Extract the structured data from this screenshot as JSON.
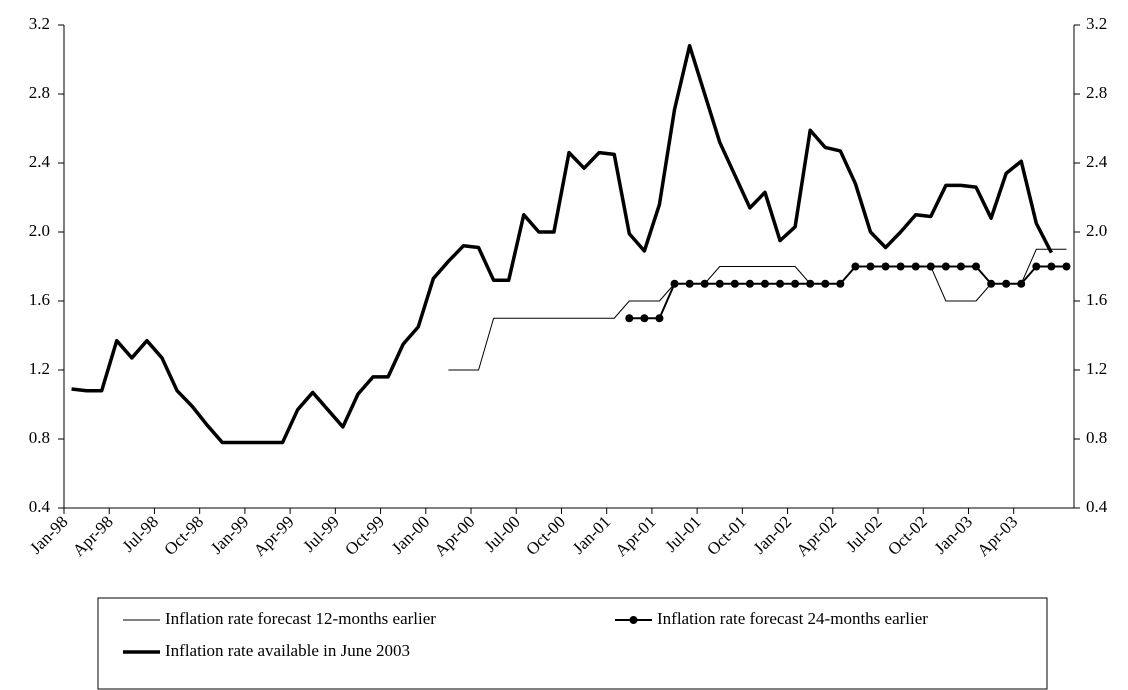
{
  "chart_data": {
    "type": "line",
    "categories": [
      "Jan-98",
      null,
      null,
      "Apr-98",
      null,
      null,
      "Jul-98",
      null,
      null,
      "Oct-98",
      null,
      null,
      "Jan-99",
      null,
      null,
      "Apr-99",
      null,
      null,
      "Jul-99",
      null,
      null,
      "Oct-99",
      null,
      null,
      "Jan-00",
      null,
      null,
      "Apr-00",
      null,
      null,
      "Jul-00",
      null,
      null,
      "Oct-00",
      null,
      null,
      "Jan-01",
      null,
      null,
      "Apr-01",
      null,
      null,
      "Jul-01",
      null,
      null,
      "Oct-01",
      null,
      null,
      "Jan-02",
      null,
      null,
      "Apr-02",
      null,
      null,
      "Jul-02",
      null,
      null,
      "Oct-02",
      null,
      null,
      "Jan-03",
      null,
      null,
      "Apr-03",
      null,
      null,
      null
    ],
    "series": [
      {
        "name": "Inflation rate forecast 12-months earlier",
        "color": "#000000",
        "width": 1,
        "values": [
          null,
          null,
          null,
          null,
          null,
          null,
          null,
          null,
          null,
          null,
          null,
          null,
          null,
          null,
          null,
          null,
          null,
          null,
          null,
          null,
          null,
          null,
          null,
          null,
          null,
          1.2,
          1.2,
          1.2,
          1.5,
          1.5,
          1.5,
          1.5,
          1.5,
          1.5,
          1.5,
          1.5,
          1.5,
          1.6,
          1.6,
          1.6,
          1.7,
          1.7,
          1.7,
          1.8,
          1.8,
          1.8,
          1.8,
          1.8,
          1.8,
          1.7,
          1.7,
          1.7,
          1.8,
          1.8,
          1.8,
          1.8,
          1.8,
          1.8,
          1.6,
          1.6,
          1.6,
          1.7,
          1.7,
          1.7,
          1.9,
          1.9,
          1.9
        ]
      },
      {
        "name": "Inflation rate forecast 24-months earlier",
        "color": "#000000",
        "width": 2,
        "marker": "circle",
        "values": [
          null,
          null,
          null,
          null,
          null,
          null,
          null,
          null,
          null,
          null,
          null,
          null,
          null,
          null,
          null,
          null,
          null,
          null,
          null,
          null,
          null,
          null,
          null,
          null,
          null,
          null,
          null,
          null,
          null,
          null,
          null,
          null,
          null,
          null,
          null,
          null,
          null,
          1.5,
          1.5,
          1.5,
          1.7,
          1.7,
          1.7,
          1.7,
          1.7,
          1.7,
          1.7,
          1.7,
          1.7,
          1.7,
          1.7,
          1.7,
          1.8,
          1.8,
          1.8,
          1.8,
          1.8,
          1.8,
          1.8,
          1.8,
          1.8,
          1.7,
          1.7,
          1.7,
          1.8,
          1.8,
          1.8
        ]
      },
      {
        "name": "Inflation rate available in June 2003",
        "color": "#000000",
        "width": 3.5,
        "values": [
          1.09,
          1.08,
          1.08,
          1.37,
          1.27,
          1.37,
          1.27,
          1.08,
          0.99,
          0.88,
          0.78,
          0.78,
          0.78,
          0.78,
          0.78,
          0.97,
          1.07,
          0.97,
          0.87,
          1.06,
          1.16,
          1.16,
          1.35,
          1.45,
          1.73,
          1.83,
          1.92,
          1.91,
          1.72,
          1.72,
          2.1,
          2.0,
          2.0,
          2.46,
          2.37,
          2.46,
          2.45,
          1.99,
          1.89,
          2.16,
          2.71,
          3.08,
          2.8,
          2.52,
          2.33,
          2.14,
          2.23,
          1.95,
          2.03,
          2.59,
          2.49,
          2.47,
          2.28,
          2.0,
          1.91,
          2.0,
          2.1,
          2.09,
          2.27,
          2.27,
          2.26,
          2.08,
          2.34,
          2.41,
          2.05,
          1.88,
          null
        ]
      }
    ],
    "ylim": [
      0.4,
      3.2
    ],
    "yticks": [
      0.4,
      0.8,
      1.2,
      1.6,
      {
        "value": 2,
        "label": "2.0"
      },
      2.4,
      2.8,
      3.2
    ],
    "y2lim": [
      0.4,
      3.2
    ],
    "y2ticks": [
      0.4,
      0.8,
      1.2,
      1.6,
      {
        "value": 2,
        "label": "2.0"
      },
      2.4,
      2.8,
      3.2
    ],
    "grid": false,
    "legend": "bottom"
  }
}
